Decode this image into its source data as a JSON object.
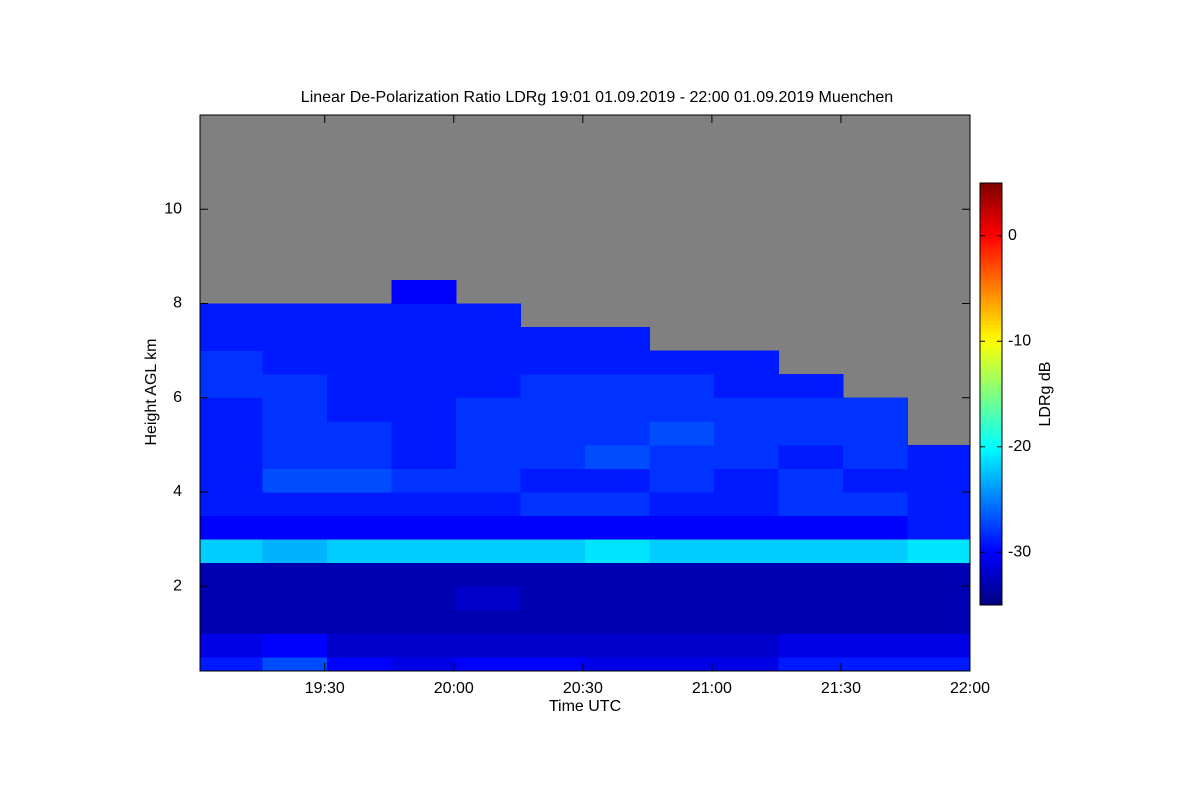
{
  "chart_data": {
    "type": "heatmap",
    "title": "Linear De-Polarization Ratio LDRg   19:01 01.09.2019 - 22:00 01.09.2019 Muenchen",
    "x_label": "Time UTC",
    "y_label": "Height AGL km",
    "x": [
      1148,
      1163,
      1178,
      1193,
      1208,
      1223,
      1238,
      1253,
      1268,
      1283,
      1298,
      1313
    ],
    "y": [
      0.25,
      0.75,
      1.25,
      1.75,
      2.25,
      2.75,
      3.25,
      3.75,
      4.25,
      4.75,
      5.25,
      5.75,
      6.25,
      6.75,
      7.25,
      7.75,
      8.25,
      8.75,
      9.25,
      9.75,
      10.25,
      10.75,
      11.25,
      11.75
    ],
    "z": [
      [
        -29,
        -27,
        -30,
        -31,
        -30,
        -30,
        -31,
        -31,
        -31,
        -29,
        -29,
        -29
      ],
      [
        -31,
        -30,
        -32,
        -32,
        -32,
        -32,
        -32,
        -32,
        -32,
        -31,
        -31,
        -31
      ],
      [
        -33,
        -33,
        -33,
        -33,
        -33,
        -33,
        -33,
        -33,
        -33,
        -33,
        -33,
        -33
      ],
      [
        -33,
        -33,
        -33,
        -33,
        -32,
        -33,
        -33,
        -33,
        -33,
        -33,
        -33,
        -33
      ],
      [
        -33,
        -33,
        -33,
        -33,
        -33,
        -33,
        -33,
        -33,
        -33,
        -33,
        -33,
        -33
      ],
      [
        -22,
        -23,
        -22,
        -22,
        -22,
        -22,
        -21,
        -22,
        -22,
        -22,
        -22,
        -21
      ],
      [
        -30,
        -30,
        -30,
        -30,
        -30,
        -30,
        -30,
        -30,
        -30,
        -30,
        -30,
        -29
      ],
      [
        -29,
        -29,
        -29,
        -29,
        -29,
        -28,
        -28,
        -29,
        -29,
        -28,
        -28,
        -29
      ],
      [
        -29,
        -27,
        -27,
        -28,
        -28,
        -29,
        -29,
        -28,
        -29,
        -28,
        -29,
        -29
      ],
      [
        -29,
        -28,
        -28,
        -29,
        -28,
        -28,
        -27,
        -28,
        -28,
        -29,
        -28,
        -29
      ],
      [
        -29,
        -28,
        -28,
        -29,
        -28,
        -28,
        -28,
        -27,
        -28,
        -28,
        -28,
        null
      ],
      [
        -29,
        -28,
        -29,
        -29,
        -28,
        -28,
        -28,
        -28,
        -28,
        -28,
        -28,
        null
      ],
      [
        -28,
        -28,
        -29,
        -29,
        -29,
        -28,
        -28,
        -28,
        -29,
        -29,
        null,
        null
      ],
      [
        -28,
        -29,
        -29,
        -29,
        -29,
        -29,
        -29,
        -29,
        -29,
        null,
        null,
        null
      ],
      [
        -29,
        -29,
        -29,
        -29,
        -29,
        -29,
        -29,
        null,
        null,
        null,
        null,
        null
      ],
      [
        -29,
        -29,
        -29,
        -29,
        -29,
        null,
        null,
        null,
        null,
        null,
        null,
        null
      ],
      [
        null,
        null,
        null,
        -30,
        null,
        null,
        null,
        null,
        null,
        null,
        null,
        null
      ],
      [
        null,
        null,
        null,
        null,
        null,
        null,
        null,
        null,
        null,
        null,
        null,
        null
      ],
      [
        null,
        null,
        null,
        null,
        null,
        null,
        null,
        null,
        null,
        null,
        null,
        null
      ],
      [
        null,
        null,
        null,
        null,
        null,
        null,
        null,
        null,
        null,
        null,
        null,
        null
      ],
      [
        null,
        null,
        null,
        null,
        null,
        null,
        null,
        null,
        null,
        null,
        null,
        null
      ],
      [
        null,
        null,
        null,
        null,
        null,
        null,
        null,
        null,
        null,
        null,
        null,
        null
      ],
      [
        null,
        null,
        null,
        null,
        null,
        null,
        null,
        null,
        null,
        null,
        null,
        null
      ],
      [
        null,
        null,
        null,
        null,
        null,
        null,
        null,
        null,
        null,
        null,
        null,
        null
      ]
    ],
    "xlim": [
      1141,
      1320
    ],
    "xticks": [
      {
        "value": 1170,
        "label": "19:30"
      },
      {
        "value": 1200,
        "label": "20:00"
      },
      {
        "value": 1230,
        "label": "20:30"
      },
      {
        "value": 1260,
        "label": "21:00"
      },
      {
        "value": 1290,
        "label": "21:30"
      },
      {
        "value": 1320,
        "label": "22:00"
      }
    ],
    "ylim": [
      0.2,
      12
    ],
    "yticks": [
      2,
      4,
      6,
      8,
      10
    ],
    "nodata_color": "#808080",
    "colorbar": {
      "label": "LDRg dB",
      "colormap": "jet",
      "clim": [
        -35,
        5
      ],
      "ticks": [
        0,
        -10,
        -20,
        -30
      ]
    }
  }
}
